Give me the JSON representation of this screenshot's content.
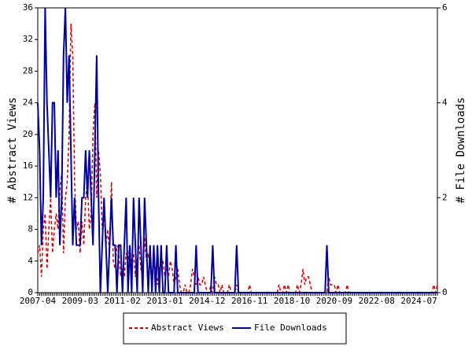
{
  "chart_data": {
    "type": "line",
    "ylabel": "# Abstract Views",
    "y2label": "# File Downloads",
    "ylim": [
      0,
      36
    ],
    "yticks": [
      0,
      4,
      8,
      12,
      16,
      20,
      24,
      28,
      32,
      36
    ],
    "y2lim": [
      0,
      6
    ],
    "y2ticks": [
      0,
      2,
      4,
      6
    ],
    "legend": "bottom",
    "categories": [
      "2007-04",
      null,
      null,
      null,
      null,
      null,
      null,
      null,
      null,
      null,
      null,
      null,
      null,
      null,
      null,
      null,
      null,
      null,
      null,
      null,
      null,
      null,
      null,
      "2009-03",
      null,
      null,
      null,
      null,
      null,
      null,
      null,
      null,
      null,
      null,
      null,
      null,
      null,
      null,
      null,
      null,
      null,
      null,
      null,
      null,
      null,
      null,
      "2011-02",
      null,
      null,
      null,
      null,
      null,
      null,
      null,
      null,
      null,
      null,
      null,
      null,
      null,
      null,
      null,
      null,
      null,
      null,
      null,
      null,
      null,
      null,
      "2013-01",
      null,
      null,
      null,
      null,
      null,
      null,
      null,
      null,
      null,
      null,
      null,
      null,
      null,
      null,
      null,
      null,
      null,
      null,
      null,
      null,
      null,
      null,
      "2014-12",
      null,
      null,
      null,
      null,
      null,
      null,
      null,
      null,
      null,
      null,
      null,
      null,
      null,
      null,
      null,
      null,
      null,
      null,
      null,
      null,
      null,
      null,
      "2016-11",
      null,
      null,
      null,
      null,
      null,
      null,
      null,
      null,
      null,
      null,
      null,
      null,
      null,
      null,
      null,
      null,
      null,
      null,
      null,
      null,
      null,
      null,
      "2018-10",
      null,
      null,
      null,
      null,
      null,
      null,
      null,
      null,
      null,
      null,
      null,
      null,
      null,
      null,
      null,
      null,
      null,
      null,
      null,
      null,
      null,
      null,
      "2020-09",
      null,
      null,
      null,
      null,
      null,
      null,
      null,
      null,
      null,
      null,
      null,
      null,
      null,
      null,
      null,
      null,
      null,
      null,
      null,
      null,
      null,
      null,
      "2022-08",
      null,
      null,
      null,
      null,
      null,
      null,
      null,
      null,
      null,
      null,
      null,
      null,
      null,
      null,
      null,
      null,
      null,
      null,
      null,
      null,
      null,
      null,
      "2024-07",
      null,
      null,
      null,
      null,
      null,
      null,
      null,
      null,
      null,
      null
    ],
    "series": [
      {
        "name": "Abstract Views",
        "color": "#cc0000",
        "dashed": true,
        "values": [
          5,
          6,
          2,
          8,
          10,
          3,
          8,
          12,
          5,
          8,
          10,
          8,
          13,
          15,
          5,
          12,
          14,
          20,
          34,
          30,
          14,
          8,
          9,
          5,
          9,
          6,
          12,
          14,
          8,
          10,
          20,
          24,
          12,
          18,
          15,
          8,
          10,
          6,
          8,
          5,
          14,
          4,
          3,
          6,
          5,
          2,
          3,
          2,
          5,
          4,
          6,
          3,
          5,
          2,
          4,
          6,
          3,
          2,
          7,
          4,
          5,
          3,
          2,
          4,
          3,
          1,
          3,
          4,
          4,
          2,
          3,
          2,
          4,
          3,
          1,
          2,
          3,
          1,
          0,
          0,
          1,
          0,
          0,
          1,
          3,
          2,
          1,
          2,
          1,
          1,
          2,
          1,
          0,
          0,
          1,
          0,
          2,
          1,
          1,
          0,
          1,
          0,
          0,
          0,
          1,
          0,
          0,
          0,
          1,
          0,
          0,
          0,
          0,
          0,
          0,
          1,
          0,
          0,
          0,
          0,
          0,
          0,
          0,
          0,
          0,
          0,
          0,
          0,
          0,
          0,
          0,
          1,
          0,
          0,
          1,
          0,
          1,
          0,
          0,
          0,
          0,
          1,
          0,
          1,
          3,
          1,
          2,
          2,
          1,
          0,
          0,
          0,
          0,
          0,
          0,
          0,
          0,
          0,
          2,
          1,
          1,
          1,
          0,
          1,
          0,
          0,
          0,
          0,
          1,
          0,
          0,
          0,
          0,
          0,
          0,
          0,
          0,
          0,
          0,
          0,
          0,
          0,
          0,
          0,
          0,
          0,
          0,
          0,
          0,
          0,
          0,
          0,
          0,
          0,
          0,
          0,
          0,
          0,
          0,
          0,
          0,
          0,
          0,
          0,
          0,
          0,
          0,
          0,
          0,
          0,
          0,
          0,
          0,
          0,
          0,
          1,
          0,
          1
        ]
      },
      {
        "name": "File Downloads",
        "color": "#000099",
        "dashed": false,
        "axis": "y2",
        "values": [
          4,
          3,
          1,
          2,
          6,
          4,
          3,
          2,
          4,
          4,
          2,
          3,
          1,
          2,
          5,
          6,
          4,
          5,
          3,
          1,
          2,
          1,
          1,
          1,
          2,
          2,
          3,
          2,
          3,
          2,
          1,
          3,
          5,
          2,
          0,
          1,
          2,
          1,
          0,
          1,
          2,
          1,
          1,
          0,
          1,
          1,
          0,
          1,
          2,
          0,
          1,
          0,
          2,
          1,
          0,
          2,
          1,
          0,
          2,
          1,
          0,
          1,
          0,
          1,
          0,
          1,
          0,
          1,
          0,
          0,
          1,
          0,
          0,
          0,
          0,
          1,
          0,
          0,
          0,
          0,
          0,
          0,
          0,
          0,
          0,
          0,
          1,
          0,
          0,
          0,
          0,
          0,
          0,
          0,
          0,
          1,
          0,
          0,
          0,
          0,
          0,
          0,
          0,
          0,
          0,
          0,
          0,
          0,
          1,
          0,
          0,
          0,
          0,
          0,
          0,
          0,
          0,
          0,
          0,
          0,
          0,
          0,
          0,
          0,
          0,
          0,
          0,
          0,
          0,
          0,
          0,
          0,
          0,
          0,
          0,
          0,
          0,
          0,
          0,
          0,
          0,
          0,
          0,
          0,
          0,
          0,
          0,
          0,
          0,
          0,
          0,
          0,
          0,
          0,
          0,
          0,
          0,
          1,
          0,
          0,
          0,
          0,
          0,
          0,
          0,
          0,
          0,
          0,
          0,
          0,
          0,
          0,
          0,
          0,
          0,
          0,
          0,
          0,
          0,
          0,
          0,
          0,
          0,
          0,
          0,
          0,
          0,
          0,
          0,
          0,
          0,
          0,
          0,
          0,
          0,
          0,
          0,
          0,
          0,
          0,
          0,
          0,
          0,
          0,
          0,
          0,
          0,
          0,
          0,
          0,
          0,
          0,
          0,
          0,
          0,
          0,
          0,
          0
        ]
      }
    ]
  }
}
